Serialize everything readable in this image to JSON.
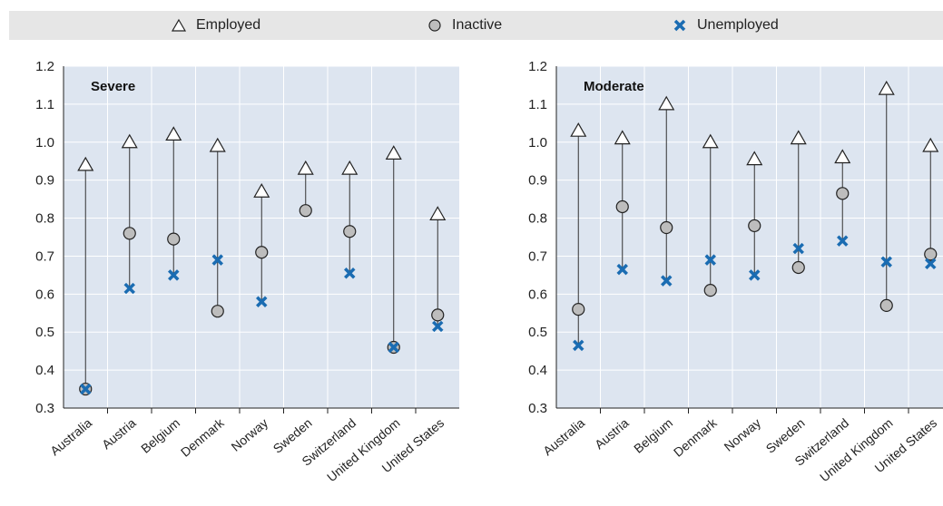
{
  "legend": {
    "employed": "Employed",
    "inactive": "Inactive",
    "unemployed": "Unemployed"
  },
  "colors": {
    "panel_bg": "#dde5f0",
    "grid": "#ffffff",
    "inactive_fill": "#bdbdbd",
    "unemployed": "#1a6cb2",
    "legend_bg": "#e6e6e6"
  },
  "chart_data": [
    {
      "type": "scatter",
      "title": "Severe",
      "ylim": [
        0.3,
        1.2
      ],
      "yticks": [
        0.3,
        0.4,
        0.5,
        0.6,
        0.7,
        0.8,
        0.9,
        1.0,
        1.1,
        1.2
      ],
      "ytick_labels": [
        "0.3",
        "0.4",
        "0.5",
        "0.6",
        "0.7",
        "0.8",
        "0.9",
        "1.0",
        "1.1",
        "1.2"
      ],
      "categories": [
        "Australia",
        "Austria",
        "Belgium",
        "Denmark",
        "Norway",
        "Sweden",
        "Switzerland",
        "United Kingdom",
        "United States"
      ],
      "series": [
        {
          "name": "Employed",
          "values": [
            0.94,
            1.0,
            1.02,
            0.99,
            0.87,
            0.93,
            0.93,
            0.97,
            0.81
          ]
        },
        {
          "name": "Inactive",
          "values": [
            0.35,
            0.76,
            0.745,
            0.555,
            0.71,
            0.82,
            0.765,
            0.46,
            0.545
          ]
        },
        {
          "name": "Unemployed",
          "values": [
            0.35,
            0.615,
            0.65,
            0.69,
            0.58,
            null,
            0.655,
            0.46,
            0.515
          ]
        }
      ]
    },
    {
      "type": "scatter",
      "title": "Moderate",
      "ylim": [
        0.3,
        1.2
      ],
      "yticks": [
        0.3,
        0.4,
        0.5,
        0.6,
        0.7,
        0.8,
        0.9,
        1.0,
        1.1,
        1.2
      ],
      "ytick_labels": [
        "0.3",
        "0.4",
        "0.5",
        "0.6",
        "0.7",
        "0.8",
        "0.9",
        "1.0",
        "1.1",
        "1.2"
      ],
      "categories": [
        "Australia",
        "Austria",
        "Belgium",
        "Denmark",
        "Norway",
        "Sweden",
        "Switzerland",
        "United Kingdom",
        "United States"
      ],
      "series": [
        {
          "name": "Employed",
          "values": [
            1.03,
            1.01,
            1.1,
            1.0,
            0.955,
            1.01,
            0.96,
            1.14,
            0.99
          ]
        },
        {
          "name": "Inactive",
          "values": [
            0.56,
            0.83,
            0.775,
            0.61,
            0.78,
            0.67,
            0.865,
            0.57,
            0.705
          ]
        },
        {
          "name": "Unemployed",
          "values": [
            0.465,
            0.665,
            0.635,
            0.69,
            0.65,
            0.72,
            0.74,
            0.685,
            0.68
          ]
        }
      ]
    }
  ]
}
